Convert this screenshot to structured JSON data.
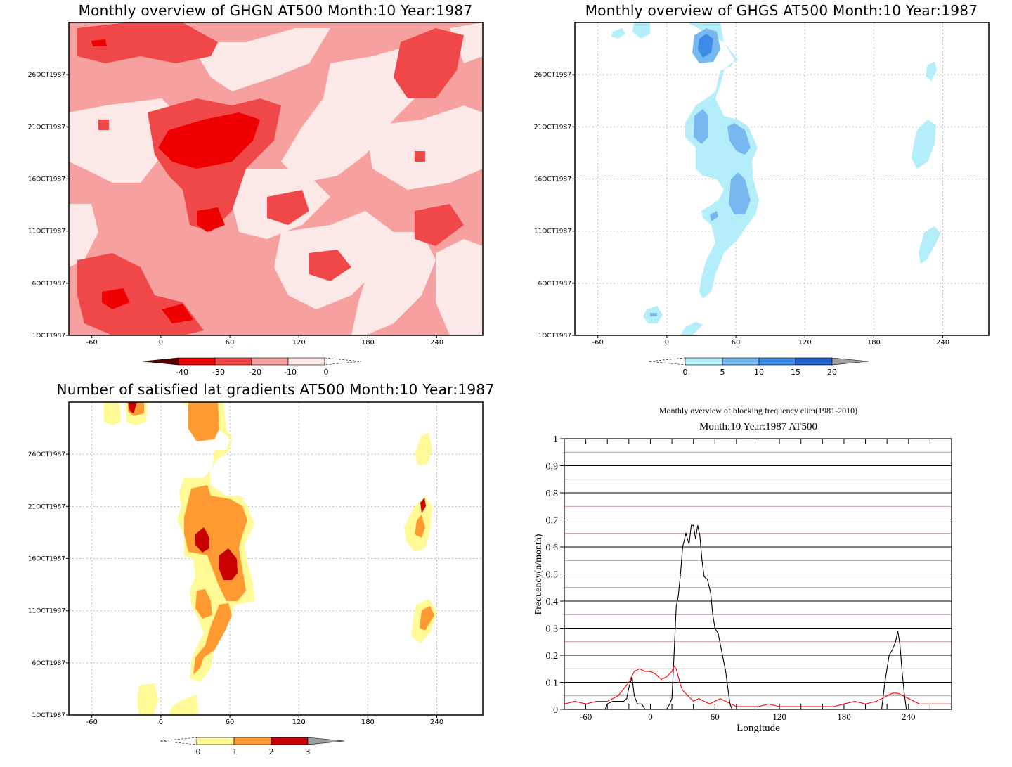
{
  "panels": {
    "ghgn": {
      "title": "Monthly overview of GHGN AT500 Month:10 Year:1987",
      "x_ticks": [
        "-60",
        "0",
        "60",
        "120",
        "180",
        "240"
      ],
      "y_ticks": [
        "1OCT1987",
        "6OCT1987",
        "11OCT1987",
        "16OCT1987",
        "21OCT1987",
        "26OCT1987"
      ],
      "colorbar": {
        "labels": [
          "-40",
          "-30",
          "-20",
          "-10",
          "0"
        ],
        "colors": [
          "#550000",
          "#ee0000",
          "#f04848",
          "#f7a0a0",
          "#fde8e8"
        ]
      }
    },
    "ghgs": {
      "title": "Monthly overview of GHGS AT500 Month:10 Year:1987",
      "x_ticks": [
        "-60",
        "0",
        "60",
        "120",
        "180",
        "240"
      ],
      "y_ticks": [
        "1OCT1987",
        "6OCT1987",
        "11OCT1987",
        "16OCT1987",
        "21OCT1987",
        "26OCT1987"
      ],
      "colorbar": {
        "labels": [
          "0",
          "5",
          "10",
          "15",
          "20"
        ],
        "colors": [
          "#b4eefa",
          "#78b8f0",
          "#3c8ce6",
          "#1e60c8",
          "#a0a0a0"
        ]
      }
    },
    "lat": {
      "title": "Number of satisfied lat gradients AT500 Month:10 Year:1987",
      "x_ticks": [
        "-60",
        "0",
        "60",
        "120",
        "180",
        "240"
      ],
      "y_ticks": [
        "1OCT1987",
        "6OCT1987",
        "11OCT1987",
        "16OCT1987",
        "21OCT1987",
        "26OCT1987"
      ],
      "colorbar": {
        "labels": [
          "0",
          "1",
          "2",
          "3"
        ],
        "colors": [
          "#fffa96",
          "#ff9a32",
          "#c80000",
          "#a0a0a0"
        ]
      }
    },
    "freq": {
      "title": "Monthly overview of blocking frequency clim(1981-2010)",
      "subtitle": "Month:10 Year:1987  AT500",
      "xlabel": "Longitude",
      "ylabel": "Frequency(n/month)",
      "x_ticks": [
        "-60",
        "0",
        "60",
        "120",
        "180",
        "240"
      ],
      "y_ticks": [
        "0",
        "0.1",
        "0.2",
        "0.3",
        "0.4",
        "0.5",
        "0.6",
        "0.7",
        "0.8",
        "0.9",
        "1"
      ]
    }
  },
  "chart_data": {
    "type": "line",
    "title": "Monthly overview of blocking frequency clim(1981-2010)",
    "subtitle": "Month:10 Year:1987  AT500",
    "xlabel": "Longitude",
    "ylabel": "Frequency(n/month)",
    "xlim": [
      -80,
      280
    ],
    "ylim": [
      0,
      1
    ],
    "grid": true,
    "series": [
      {
        "color": "#000000",
        "x": [
          -80,
          -42,
          -40,
          -35,
          -30,
          -25,
          -22,
          -20,
          -17,
          -15,
          -12,
          -8,
          -5,
          -2,
          0,
          5,
          10,
          15,
          18,
          20,
          22,
          24,
          26,
          28,
          30,
          33,
          36,
          38,
          40,
          42,
          44,
          46,
          48,
          50,
          53,
          56,
          58,
          60,
          63,
          66,
          70,
          72,
          74,
          76,
          78,
          80,
          210,
          215,
          218,
          222,
          225,
          228,
          230,
          232,
          234,
          236,
          238,
          280
        ],
        "y": [
          0,
          0,
          0.02,
          0.03,
          0.03,
          0.03,
          0.04,
          0.08,
          0.12,
          0.05,
          0.02,
          0.02,
          0,
          0,
          0,
          0,
          0,
          0,
          0.02,
          0.04,
          0.2,
          0.38,
          0.42,
          0.5,
          0.6,
          0.65,
          0.61,
          0.68,
          0.68,
          0.63,
          0.68,
          0.64,
          0.55,
          0.49,
          0.48,
          0.43,
          0.35,
          0.3,
          0.28,
          0.22,
          0.14,
          0.08,
          0.02,
          0,
          0,
          0,
          0,
          0,
          0.1,
          0.2,
          0.22,
          0.25,
          0.29,
          0.24,
          0.14,
          0.06,
          0,
          0
        ]
      },
      {
        "color": "#ff0000",
        "x": [
          -80,
          -70,
          -60,
          -50,
          -40,
          -30,
          -20,
          -15,
          -10,
          -5,
          0,
          5,
          10,
          15,
          20,
          22,
          24,
          26,
          28,
          30,
          35,
          40,
          45,
          50,
          55,
          60,
          65,
          70,
          75,
          80,
          90,
          100,
          110,
          120,
          130,
          140,
          150,
          160,
          170,
          180,
          190,
          200,
          210,
          220,
          225,
          230,
          235,
          240,
          250,
          260,
          270,
          280
        ],
        "y": [
          0.02,
          0.03,
          0.02,
          0.03,
          0.03,
          0.05,
          0.1,
          0.14,
          0.15,
          0.14,
          0.14,
          0.13,
          0.11,
          0.12,
          0.14,
          0.16,
          0.15,
          0.12,
          0.09,
          0.07,
          0.05,
          0.03,
          0.04,
          0.03,
          0.02,
          0.03,
          0.04,
          0.03,
          0.02,
          0.01,
          0.01,
          0.01,
          0.02,
          0.01,
          0.01,
          0.01,
          0.01,
          0.01,
          0.01,
          0.02,
          0.03,
          0.02,
          0.03,
          0.05,
          0.06,
          0.06,
          0.05,
          0.04,
          0.02,
          0.02,
          0.02,
          0.02
        ]
      }
    ]
  }
}
